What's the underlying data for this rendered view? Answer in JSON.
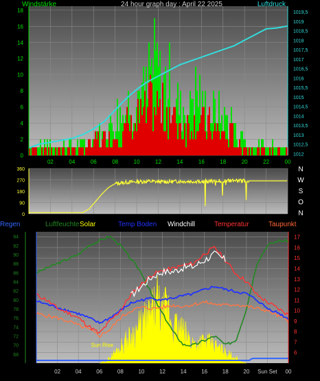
{
  "chart_data": [
    {
      "type": "bar",
      "title": "24 hour graph day : April 22 2025",
      "left_label": "Windstärke",
      "right_label": "Luftdruck",
      "x_ticks": [
        "02",
        "04",
        "06",
        "08",
        "10",
        "12",
        "14",
        "16",
        "18",
        "20",
        "22",
        "00"
      ],
      "y_left_ticks": [
        "0",
        "2",
        "4",
        "6",
        "8",
        "10",
        "12",
        "14",
        "16",
        "18"
      ],
      "y_right_ticks": [
        "1012",
        "1012,5",
        "1013",
        "1013,5",
        "1014",
        "1014,5",
        "1015",
        "1015,5",
        "1016",
        "1016,5",
        "1017",
        "1017,5",
        "1018",
        "1018,5",
        "1019",
        "1019,5"
      ],
      "ylim_left": [
        0,
        18.5
      ],
      "ylim_right": [
        1011.9,
        1019.8
      ],
      "gust_hourly_max": [
        2,
        2,
        2,
        2,
        2,
        3,
        4,
        6,
        8,
        10,
        12,
        17,
        14,
        10,
        9,
        12,
        9,
        8,
        7,
        4,
        2,
        2,
        2,
        2
      ],
      "wind_hourly_avg": [
        1,
        1,
        1,
        1,
        1,
        2,
        3,
        4,
        5,
        6,
        8,
        10,
        9,
        7,
        6,
        7,
        6,
        5,
        4,
        2,
        1,
        1,
        1,
        1
      ],
      "pressure": [
        [
          0,
          1012.3
        ],
        [
          1,
          1012.5
        ],
        [
          2,
          1012.6
        ],
        [
          3,
          1012.7
        ],
        [
          4,
          1012.8
        ],
        [
          5,
          1013.0
        ],
        [
          6,
          1013.3
        ],
        [
          7,
          1013.7
        ],
        [
          8,
          1014.3
        ],
        [
          9,
          1014.9
        ],
        [
          10,
          1015.4
        ],
        [
          11,
          1015.8
        ],
        [
          12,
          1016.1
        ],
        [
          13,
          1016.4
        ],
        [
          14,
          1016.7
        ],
        [
          15,
          1016.9
        ],
        [
          16,
          1017.1
        ],
        [
          17,
          1017.3
        ],
        [
          18,
          1017.5
        ],
        [
          19,
          1017.7
        ],
        [
          20,
          1018.0
        ],
        [
          21,
          1018.3
        ],
        [
          22,
          1018.6
        ],
        [
          23,
          1018.65
        ],
        [
          24,
          1018.75
        ]
      ],
      "colors": {
        "gust": "#00e000",
        "wind": "#e00000",
        "pressure": "#33dddd"
      }
    },
    {
      "type": "line",
      "y_ticks": [
        "0",
        "90",
        "180",
        "270",
        "360"
      ],
      "ylim": [
        0,
        360
      ],
      "compass_labels": [
        "N",
        "W",
        "S",
        "O",
        "N"
      ],
      "direction": [
        [
          0,
          10
        ],
        [
          5,
          10
        ],
        [
          5.6,
          40
        ],
        [
          6.2,
          100
        ],
        [
          6.8,
          160
        ],
        [
          7.4,
          210
        ],
        [
          8,
          240
        ],
        [
          9,
          250
        ],
        [
          10,
          255
        ],
        [
          11,
          258
        ],
        [
          12,
          255
        ],
        [
          13,
          255
        ],
        [
          14,
          258
        ],
        [
          15,
          258
        ],
        [
          16,
          258
        ],
        [
          17,
          260
        ],
        [
          18,
          262
        ],
        [
          19,
          262
        ],
        [
          20,
          262
        ],
        [
          21,
          262
        ],
        [
          22,
          262
        ],
        [
          23,
          262
        ],
        [
          24,
          262
        ]
      ],
      "color": "#ffff33"
    },
    {
      "type": "line",
      "legend": [
        {
          "label": "Regen",
          "color": "#3366ff"
        },
        {
          "label": "Luftfeuchte",
          "color": "#228822"
        },
        {
          "label": "Solar",
          "color": "#ffff00"
        },
        {
          "label": "Temp Boden",
          "color": "#2233ff"
        },
        {
          "label": "Windchill",
          "color": "#ffffff"
        },
        {
          "label": "Temperatur",
          "color": "#ff3333"
        },
        {
          "label": "Taupunkt",
          "color": "#ff6633"
        }
      ],
      "x_ticks": [
        "02",
        "04",
        "06",
        "08",
        "10",
        "12",
        "14",
        "16",
        "18",
        "20",
        "Sun Set",
        "00"
      ],
      "y_left_ticks": [
        "68",
        "70",
        "72",
        "74",
        "76",
        "78",
        "80",
        "82",
        "84",
        "86",
        "88",
        "90",
        "92",
        "94"
      ],
      "y_right_ticks": [
        "6",
        "7",
        "8",
        "9",
        "10",
        "11",
        "12",
        "13",
        "14",
        "15",
        "16",
        "17"
      ],
      "ylim_humidity": [
        66,
        95
      ],
      "ylim_temp": [
        5,
        17.5
      ],
      "sun_rise_label": "Sun Rise",
      "humidity": [
        [
          0,
          86
        ],
        [
          1,
          87
        ],
        [
          2,
          88
        ],
        [
          3,
          89
        ],
        [
          4,
          90
        ],
        [
          5,
          92
        ],
        [
          6,
          93
        ],
        [
          7,
          94
        ],
        [
          8,
          92
        ],
        [
          9,
          89
        ],
        [
          10,
          86
        ],
        [
          11,
          81
        ],
        [
          12,
          77
        ],
        [
          13,
          73
        ],
        [
          14,
          70
        ],
        [
          15,
          70
        ],
        [
          16,
          71
        ],
        [
          17,
          72
        ],
        [
          18,
          70
        ],
        [
          19,
          71
        ],
        [
          20,
          78
        ],
        [
          21,
          88
        ],
        [
          22,
          92
        ],
        [
          23,
          93
        ],
        [
          24,
          93
        ]
      ],
      "temperatur": [
        [
          0,
          11.5
        ],
        [
          1,
          11.0
        ],
        [
          2,
          10.2
        ],
        [
          3,
          9.8
        ],
        [
          4,
          9.3
        ],
        [
          5,
          8.5
        ],
        [
          6,
          7.8
        ],
        [
          7,
          9.0
        ],
        [
          8,
          10.0
        ],
        [
          9,
          11.5
        ],
        [
          10,
          12.5
        ],
        [
          11,
          13.4
        ],
        [
          12,
          13.8
        ],
        [
          13,
          14.0
        ],
        [
          14,
          14.3
        ],
        [
          15,
          14.5
        ],
        [
          16,
          15.4
        ],
        [
          17,
          16.0
        ],
        [
          18,
          14.8
        ],
        [
          19,
          13.5
        ],
        [
          20,
          12.8
        ],
        [
          21,
          11.5
        ],
        [
          22,
          10.8
        ],
        [
          23,
          10.2
        ],
        [
          24,
          9.6
        ]
      ],
      "windchill": [
        [
          9,
          11.4
        ],
        [
          10,
          12.3
        ],
        [
          11,
          13.2
        ],
        [
          12,
          13.7
        ],
        [
          13,
          13.7
        ],
        [
          14,
          14.1
        ],
        [
          15,
          14.2
        ],
        [
          16,
          14.8
        ],
        [
          17,
          15.4
        ],
        [
          18,
          14.8
        ]
      ],
      "taupunkt": [
        [
          0,
          9.7
        ],
        [
          1,
          9.5
        ],
        [
          2,
          9.3
        ],
        [
          3,
          9.0
        ],
        [
          4,
          8.6
        ],
        [
          5,
          8.2
        ],
        [
          6,
          7.6
        ],
        [
          7,
          8.2
        ],
        [
          8,
          9.3
        ],
        [
          9,
          10.0
        ],
        [
          10,
          10.3
        ],
        [
          11,
          10.2
        ],
        [
          12,
          10.3
        ],
        [
          13,
          10.5
        ],
        [
          14,
          10.4
        ],
        [
          15,
          10.6
        ],
        [
          16,
          10.8
        ],
        [
          17,
          10.6
        ],
        [
          18,
          10.5
        ],
        [
          19,
          10.6
        ],
        [
          20,
          10.4
        ],
        [
          21,
          10.2
        ],
        [
          22,
          10.0
        ],
        [
          23,
          9.5
        ],
        [
          24,
          9.0
        ]
      ],
      "temp_boden": [
        [
          0,
          10.9
        ],
        [
          1,
          10.6
        ],
        [
          2,
          10.3
        ],
        [
          3,
          10.0
        ],
        [
          4,
          9.7
        ],
        [
          5,
          9.3
        ],
        [
          6,
          8.8
        ],
        [
          7,
          9.3
        ],
        [
          8,
          10.0
        ],
        [
          9,
          10.7
        ],
        [
          10,
          11.0
        ],
        [
          11,
          11.2
        ],
        [
          12,
          11.0
        ],
        [
          13,
          11.2
        ],
        [
          14,
          11.4
        ],
        [
          15,
          11.6
        ],
        [
          16,
          12.0
        ],
        [
          17,
          12.3
        ],
        [
          18,
          12.0
        ],
        [
          19,
          11.8
        ],
        [
          20,
          11.6
        ],
        [
          21,
          11.0
        ],
        [
          22,
          10.2
        ],
        [
          23,
          9.8
        ],
        [
          24,
          9.2
        ]
      ],
      "solar_pct": [
        [
          6,
          0
        ],
        [
          6.7,
          0.02
        ],
        [
          7,
          0.05
        ],
        [
          8,
          0.15
        ],
        [
          9,
          0.25
        ],
        [
          10,
          0.35
        ],
        [
          11,
          0.45
        ],
        [
          11.5,
          0.55
        ],
        [
          12,
          0.42
        ],
        [
          12.5,
          0.52
        ],
        [
          13,
          0.35
        ],
        [
          14,
          0.28
        ],
        [
          15,
          0.18
        ],
        [
          16,
          0.2
        ],
        [
          17,
          0.16
        ],
        [
          18,
          0.1
        ],
        [
          19,
          0.05
        ],
        [
          19.6,
          0.01
        ],
        [
          20,
          0
        ]
      ],
      "rain": [
        [
          0,
          0
        ],
        [
          20.3,
          0
        ],
        [
          20.4,
          0.05
        ],
        [
          20.6,
          0.1
        ],
        [
          24,
          0.1
        ]
      ]
    }
  ]
}
